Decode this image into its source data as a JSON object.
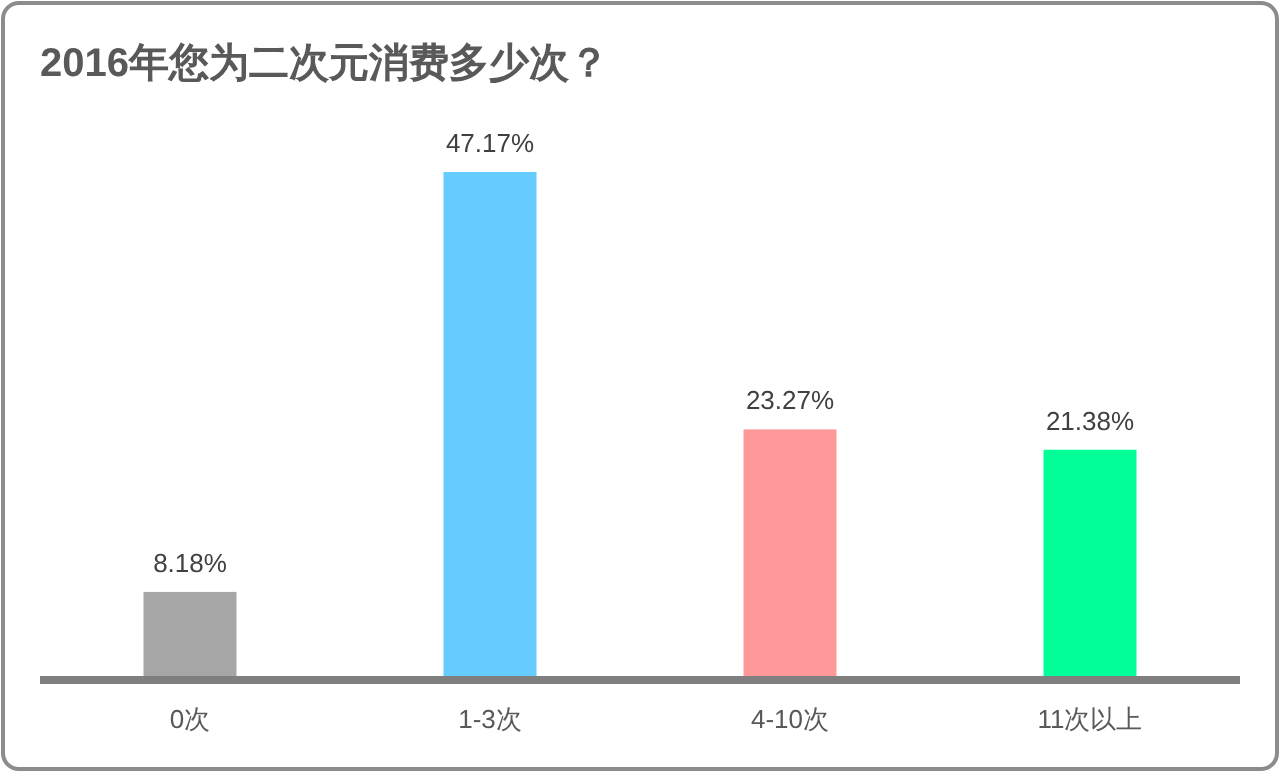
{
  "chart_data": {
    "type": "bar",
    "title": "2016年您为二次元消费多少次？",
    "categories": [
      "0次",
      "1-3次",
      "4-10次",
      "11次以上"
    ],
    "values": [
      8.18,
      47.17,
      23.27,
      21.38
    ],
    "colors": [
      "#a6a6a6",
      "#66ccff",
      "#ff9999",
      "#00ff99"
    ],
    "value_labels": [
      "8.18%",
      "47.17%",
      "23.27%",
      "21.38%"
    ],
    "grid": false
  }
}
